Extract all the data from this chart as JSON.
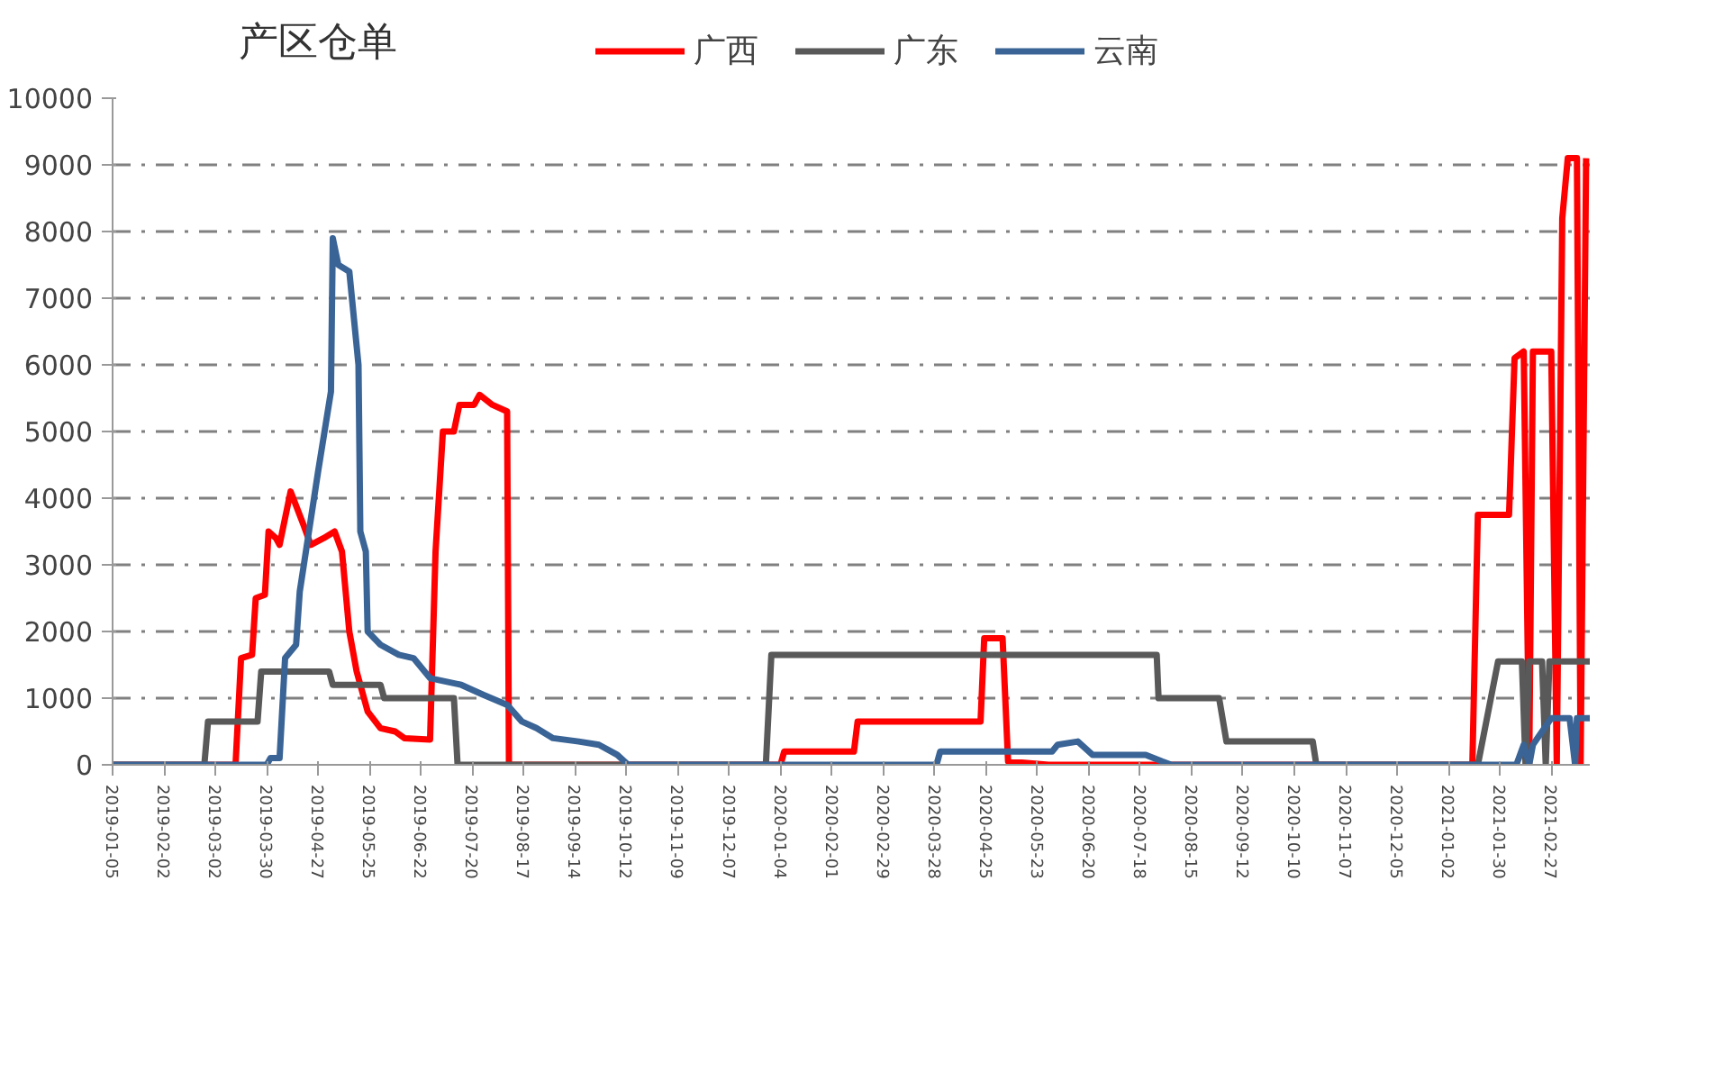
{
  "chart_data": {
    "type": "line",
    "title": "产区仓单",
    "legend": "top",
    "grid": "y",
    "line_style": "solid",
    "xlim": [
      "2019-01-05",
      "2021-03-20"
    ],
    "xticks": [
      "2019-01-05",
      "2019-02-02",
      "2019-03-02",
      "2019-03-30",
      "2019-04-27",
      "2019-05-25",
      "2019-06-22",
      "2019-07-20",
      "2019-08-17",
      "2019-09-14",
      "2019-10-12",
      "2019-11-09",
      "2019-12-07",
      "2020-01-04",
      "2020-02-01",
      "2020-02-29",
      "2020-03-28",
      "2020-04-25",
      "2020-05-23",
      "2020-06-20",
      "2020-07-18",
      "2020-08-15",
      "2020-09-12",
      "2020-10-10",
      "2020-11-07",
      "2020-12-05",
      "2021-01-02",
      "2021-01-30",
      "2021-02-27"
    ],
    "ylim": [
      0,
      10000
    ],
    "yticks": [
      0,
      1000,
      2000,
      3000,
      4000,
      5000,
      6000,
      7000,
      8000,
      9000,
      10000
    ],
    "series": [
      {
        "name": "广西",
        "color": "#ff0000",
        "x": [
          "2019-01-05",
          "2019-03-13",
          "2019-03-16",
          "2019-03-22",
          "2019-03-24",
          "2019-03-29",
          "2019-03-31",
          "2019-04-04",
          "2019-04-06",
          "2019-04-12",
          "2019-04-19",
          "2019-04-23",
          "2019-04-30",
          "2019-05-06",
          "2019-05-10",
          "2019-05-14",
          "2019-05-18",
          "2019-05-24",
          "2019-05-31",
          "2019-06-08",
          "2019-06-13",
          "2019-06-27",
          "2019-06-30",
          "2019-07-04",
          "2019-07-10",
          "2019-07-13",
          "2019-07-21",
          "2019-07-24",
          "2019-07-31",
          "2019-08-08",
          "2019-08-09",
          "2020-01-04",
          "2020-01-06",
          "2020-02-13",
          "2020-02-15",
          "2020-04-22",
          "2020-04-24",
          "2020-05-04",
          "2020-05-07",
          "2020-05-29",
          "2021-01-15",
          "2021-01-18",
          "2021-02-04",
          "2021-02-07",
          "2021-02-12",
          "2021-02-15",
          "2021-02-17",
          "2021-02-27",
          "2021-03-02",
          "2021-03-05",
          "2021-03-08",
          "2021-03-13",
          "2021-03-15",
          "2021-03-18"
        ],
        "values": [
          0,
          0,
          1600,
          1650,
          2500,
          2550,
          3500,
          3400,
          3300,
          4100,
          3600,
          3300,
          3400,
          3500,
          3200,
          2000,
          1400,
          800,
          550,
          500,
          400,
          380,
          3200,
          5000,
          5000,
          5400,
          5400,
          5550,
          5400,
          5300,
          0,
          0,
          200,
          200,
          650,
          650,
          1900,
          1900,
          50,
          0,
          0,
          3750,
          3750,
          6100,
          6200,
          0,
          6200,
          6200,
          0,
          8200,
          9100,
          9100,
          0,
          9100
        ]
      },
      {
        "name": "广东",
        "color": "#595959",
        "x": [
          "2019-01-05",
          "2019-02-24",
          "2019-02-26",
          "2019-03-25",
          "2019-03-27",
          "2019-05-03",
          "2019-05-05",
          "2019-05-31",
          "2019-06-02",
          "2019-07-10",
          "2019-07-12",
          "2019-12-27",
          "2019-12-30",
          "2020-07-27",
          "2020-07-28",
          "2020-08-30",
          "2020-09-03",
          "2020-10-20",
          "2020-10-22",
          "2021-01-18",
          "2021-01-29",
          "2021-02-11",
          "2021-02-13",
          "2021-02-15",
          "2021-02-22",
          "2021-02-24",
          "2021-02-26",
          "2021-03-20"
        ],
        "values": [
          0,
          0,
          650,
          650,
          1400,
          1400,
          1200,
          1200,
          1000,
          1000,
          0,
          0,
          1650,
          1650,
          1000,
          1000,
          350,
          350,
          0,
          0,
          1550,
          1550,
          0,
          1550,
          1550,
          0,
          1550,
          1550
        ]
      },
      {
        "name": "云南",
        "color": "#3a6496",
        "x": [
          "2019-01-05",
          "2019-03-30",
          "2019-04-01",
          "2019-04-06",
          "2019-04-09",
          "2019-04-15",
          "2019-04-17",
          "2019-04-22",
          "2019-04-27",
          "2019-05-04",
          "2019-05-05",
          "2019-05-08",
          "2019-05-14",
          "2019-05-19",
          "2019-05-20",
          "2019-05-23",
          "2019-05-24",
          "2019-05-31",
          "2019-06-10",
          "2019-06-18",
          "2019-06-27",
          "2019-07-14",
          "2019-07-26",
          "2019-08-08",
          "2019-08-16",
          "2019-08-24",
          "2019-09-02",
          "2019-09-16",
          "2019-09-27",
          "2019-10-07",
          "2019-10-13",
          "2020-03-29",
          "2020-03-31",
          "2020-05-31",
          "2020-06-03",
          "2020-06-14",
          "2020-06-22",
          "2020-07-21",
          "2020-07-30",
          "2020-08-04",
          "2021-02-08",
          "2021-02-12",
          "2021-02-15",
          "2021-02-17",
          "2021-02-27",
          "2021-03-09",
          "2021-03-12",
          "2021-03-13",
          "2021-03-20"
        ],
        "values": [
          0,
          0,
          100,
          100,
          1600,
          1800,
          2600,
          3500,
          4400,
          5600,
          7900,
          7500,
          7400,
          6000,
          3500,
          3200,
          2000,
          1800,
          1650,
          1600,
          1300,
          1200,
          1050,
          900,
          650,
          550,
          400,
          350,
          300,
          150,
          0,
          0,
          200,
          200,
          300,
          350,
          150,
          150,
          50,
          0,
          0,
          300,
          0,
          300,
          700,
          700,
          0,
          700,
          700
        ]
      }
    ]
  }
}
